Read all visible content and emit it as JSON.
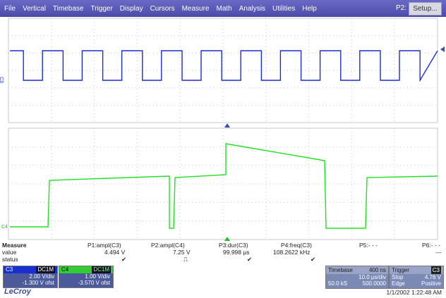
{
  "menu": [
    "File",
    "Vertical",
    "Timebase",
    "Trigger",
    "Display",
    "Cursors",
    "Measure",
    "Math",
    "Analysis",
    "Utilities",
    "Help"
  ],
  "page_indicator": "P2:",
  "setup_label": "Setup...",
  "colors": {
    "c3": "#1a2fd0",
    "c4": "#22e022",
    "grid": "#c8c8c8",
    "marker": "#3a4ac0"
  },
  "traces": {
    "c3_label": "C3",
    "c4_label": "C4"
  },
  "measure": {
    "title": "Measure",
    "row_labels": [
      "value",
      "status"
    ],
    "params": [
      {
        "name": "P1:ampl(C3)",
        "value": "4.494 V",
        "status": "✔"
      },
      {
        "name": "P2:ampl(C4)",
        "value": "7.25 V",
        "status": "⎍"
      },
      {
        "name": "P3:dur(C3)",
        "value": "99.998 µs",
        "status": "✔"
      },
      {
        "name": "P4:freq(C3)",
        "value": "108.2622 kHz",
        "status": "✔"
      },
      {
        "name": "P5:- - -",
        "value": "",
        "status": ""
      },
      {
        "name": "P6:- - -",
        "value": "---",
        "status": ""
      }
    ]
  },
  "channels": {
    "c3": {
      "label": "C3",
      "coupling": "DC1M",
      "vdiv": "2.00 V/div",
      "ofst": "-1.300 V ofst"
    },
    "c4": {
      "label": "C4",
      "coupling": "DC1M",
      "vdiv": "1.00 V/div",
      "ofst": "-3.570 V ofst"
    }
  },
  "timebase": {
    "label": "Timebase",
    "delay": "400 ns",
    "tdiv": "10.0 µs/div",
    "samples": "50.0 kS",
    "rate": "500.0000"
  },
  "trigger": {
    "label": "Trigger",
    "channel": "C3",
    "mode": "Stop",
    "level": "4.76 V",
    "type": "Edge",
    "slope": "Positive"
  },
  "brand": "LeCroy",
  "datetime": "1/1/2002 1:22:48 AM"
}
